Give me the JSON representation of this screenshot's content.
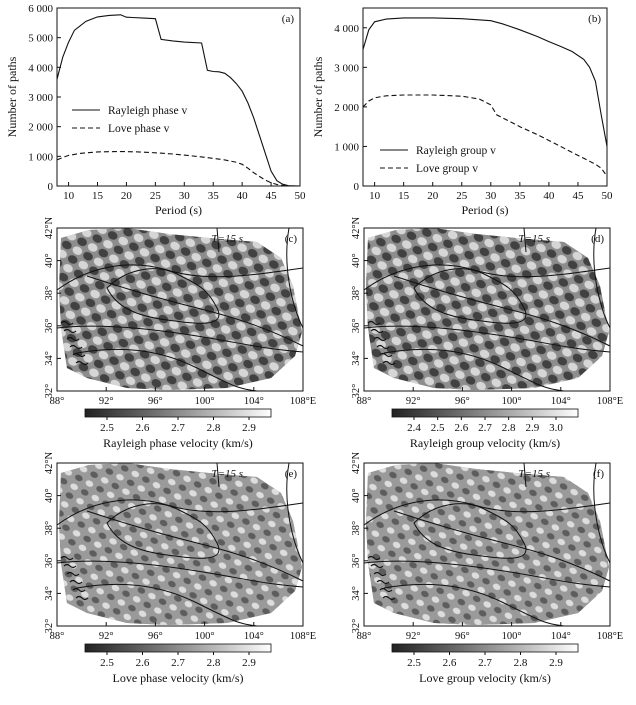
{
  "chart_data": [
    {
      "type": "line",
      "panel_label": "(a)",
      "xlabel": "Period (s)",
      "ylabel": "Number of paths",
      "xlim": [
        8,
        50
      ],
      "ylim": [
        0,
        6000
      ],
      "xticks": [
        10,
        15,
        20,
        25,
        30,
        35,
        40,
        45,
        50
      ],
      "yticks": [
        0,
        1000,
        2000,
        3000,
        4000,
        5000,
        6000
      ],
      "ytick_labels": [
        "0",
        "1 000",
        "2 000",
        "3 000",
        "4 000",
        "5 000",
        "6 000"
      ],
      "series": [
        {
          "name": "Rayleigh phase v",
          "style": "solid",
          "x": [
            8,
            9,
            10,
            11,
            13,
            15,
            17,
            19,
            20,
            21,
            23,
            25,
            26,
            28,
            30,
            33,
            34,
            35,
            36,
            37,
            38,
            39,
            40,
            41,
            42,
            43,
            44,
            45,
            46,
            47,
            48,
            50
          ],
          "y": [
            3600,
            4350,
            4850,
            5250,
            5550,
            5700,
            5750,
            5770,
            5690,
            5680,
            5660,
            5640,
            4940,
            4890,
            4850,
            4820,
            3900,
            3860,
            3850,
            3800,
            3650,
            3450,
            3200,
            2800,
            2300,
            1700,
            1100,
            500,
            180,
            60,
            10,
            0
          ]
        },
        {
          "name": "Love phase v",
          "style": "dashed",
          "x": [
            8,
            9,
            10,
            12,
            15,
            18,
            20,
            22,
            25,
            28,
            30,
            33,
            35,
            37,
            39,
            40,
            41,
            42,
            43,
            44,
            45,
            46,
            47,
            48
          ],
          "y": [
            880,
            960,
            1030,
            1100,
            1150,
            1160,
            1160,
            1150,
            1120,
            1080,
            1040,
            980,
            930,
            880,
            800,
            730,
            600,
            450,
            320,
            200,
            110,
            50,
            20,
            0
          ]
        }
      ]
    },
    {
      "type": "line",
      "panel_label": "(b)",
      "xlabel": "Period (s)",
      "ylabel": "Number of paths",
      "xlim": [
        8,
        50
      ],
      "ylim": [
        0,
        4500
      ],
      "xticks": [
        10,
        15,
        20,
        25,
        30,
        35,
        40,
        45,
        50
      ],
      "yticks": [
        0,
        1000,
        2000,
        3000,
        4000
      ],
      "ytick_labels": [
        "0",
        "1 000",
        "2 000",
        "3 000",
        "4 000"
      ],
      "series": [
        {
          "name": "Rayleigh group v",
          "style": "solid",
          "x": [
            8,
            9,
            10,
            12,
            15,
            20,
            25,
            30,
            32,
            35,
            38,
            40,
            42,
            44,
            46,
            47,
            48,
            49,
            50
          ],
          "y": [
            3450,
            3950,
            4150,
            4220,
            4250,
            4250,
            4230,
            4180,
            4100,
            3950,
            3780,
            3650,
            3530,
            3400,
            3200,
            3000,
            2650,
            1800,
            1000
          ]
        },
        {
          "name": "Love group v",
          "style": "dashed",
          "x": [
            8,
            9,
            10,
            12,
            15,
            20,
            25,
            28,
            30,
            31,
            33,
            35,
            38,
            40,
            42,
            44,
            46,
            48,
            49,
            50
          ],
          "y": [
            2000,
            2150,
            2230,
            2280,
            2300,
            2300,
            2270,
            2200,
            2050,
            1800,
            1650,
            1500,
            1300,
            1150,
            1000,
            850,
            700,
            550,
            450,
            250
          ]
        }
      ]
    },
    {
      "type": "heatmap",
      "panel_label": "(c)",
      "annotation": "T=15 s",
      "colorbar_label": "Rayleigh phase velocity (km/s)",
      "colorbar_ticks": [
        "2.5",
        "2.6",
        "2.7",
        "2.8",
        "2.9"
      ],
      "lon_ticks": [
        "88°",
        "92°",
        "96°",
        "100°",
        "104°",
        "108°E"
      ],
      "lat_ticks": [
        "32°",
        "34°",
        "36°",
        "38°",
        "40°",
        "42°N"
      ]
    },
    {
      "type": "heatmap",
      "panel_label": "(d)",
      "annotation": "T=15 s",
      "colorbar_label": "Rayleigh group velocity (km/s)",
      "colorbar_ticks": [
        "2.4",
        "2.5",
        "2.6",
        "2.7",
        "2.8",
        "2.9",
        "3.0"
      ],
      "lon_ticks": [
        "88°",
        "92°",
        "96°",
        "100°",
        "104°",
        "108°E"
      ],
      "lat_ticks": [
        "32°",
        "34°",
        "36°",
        "38°",
        "40°",
        "42°N"
      ]
    },
    {
      "type": "heatmap",
      "panel_label": "(e)",
      "annotation": "T=15 s",
      "colorbar_label": "Love phase velocity (km/s)",
      "colorbar_ticks": [
        "2.5",
        "2.6",
        "2.7",
        "2.8",
        "2.9"
      ],
      "lon_ticks": [
        "88°",
        "92°",
        "96°",
        "100°",
        "104°",
        "108°E"
      ],
      "lat_ticks": [
        "32°",
        "34°",
        "36°",
        "38°",
        "40°",
        "42°N"
      ]
    },
    {
      "type": "heatmap",
      "panel_label": "(f)",
      "annotation": "T=15 s",
      "colorbar_label": "Love group velocity (km/s)",
      "colorbar_ticks": [
        "2.5",
        "2.6",
        "2.7",
        "2.8",
        "2.9"
      ],
      "lon_ticks": [
        "88°",
        "92°",
        "96°",
        "100°",
        "104°",
        "108°E"
      ],
      "lat_ticks": [
        "32°",
        "34°",
        "36°",
        "38°",
        "40°",
        "42°N"
      ]
    }
  ]
}
